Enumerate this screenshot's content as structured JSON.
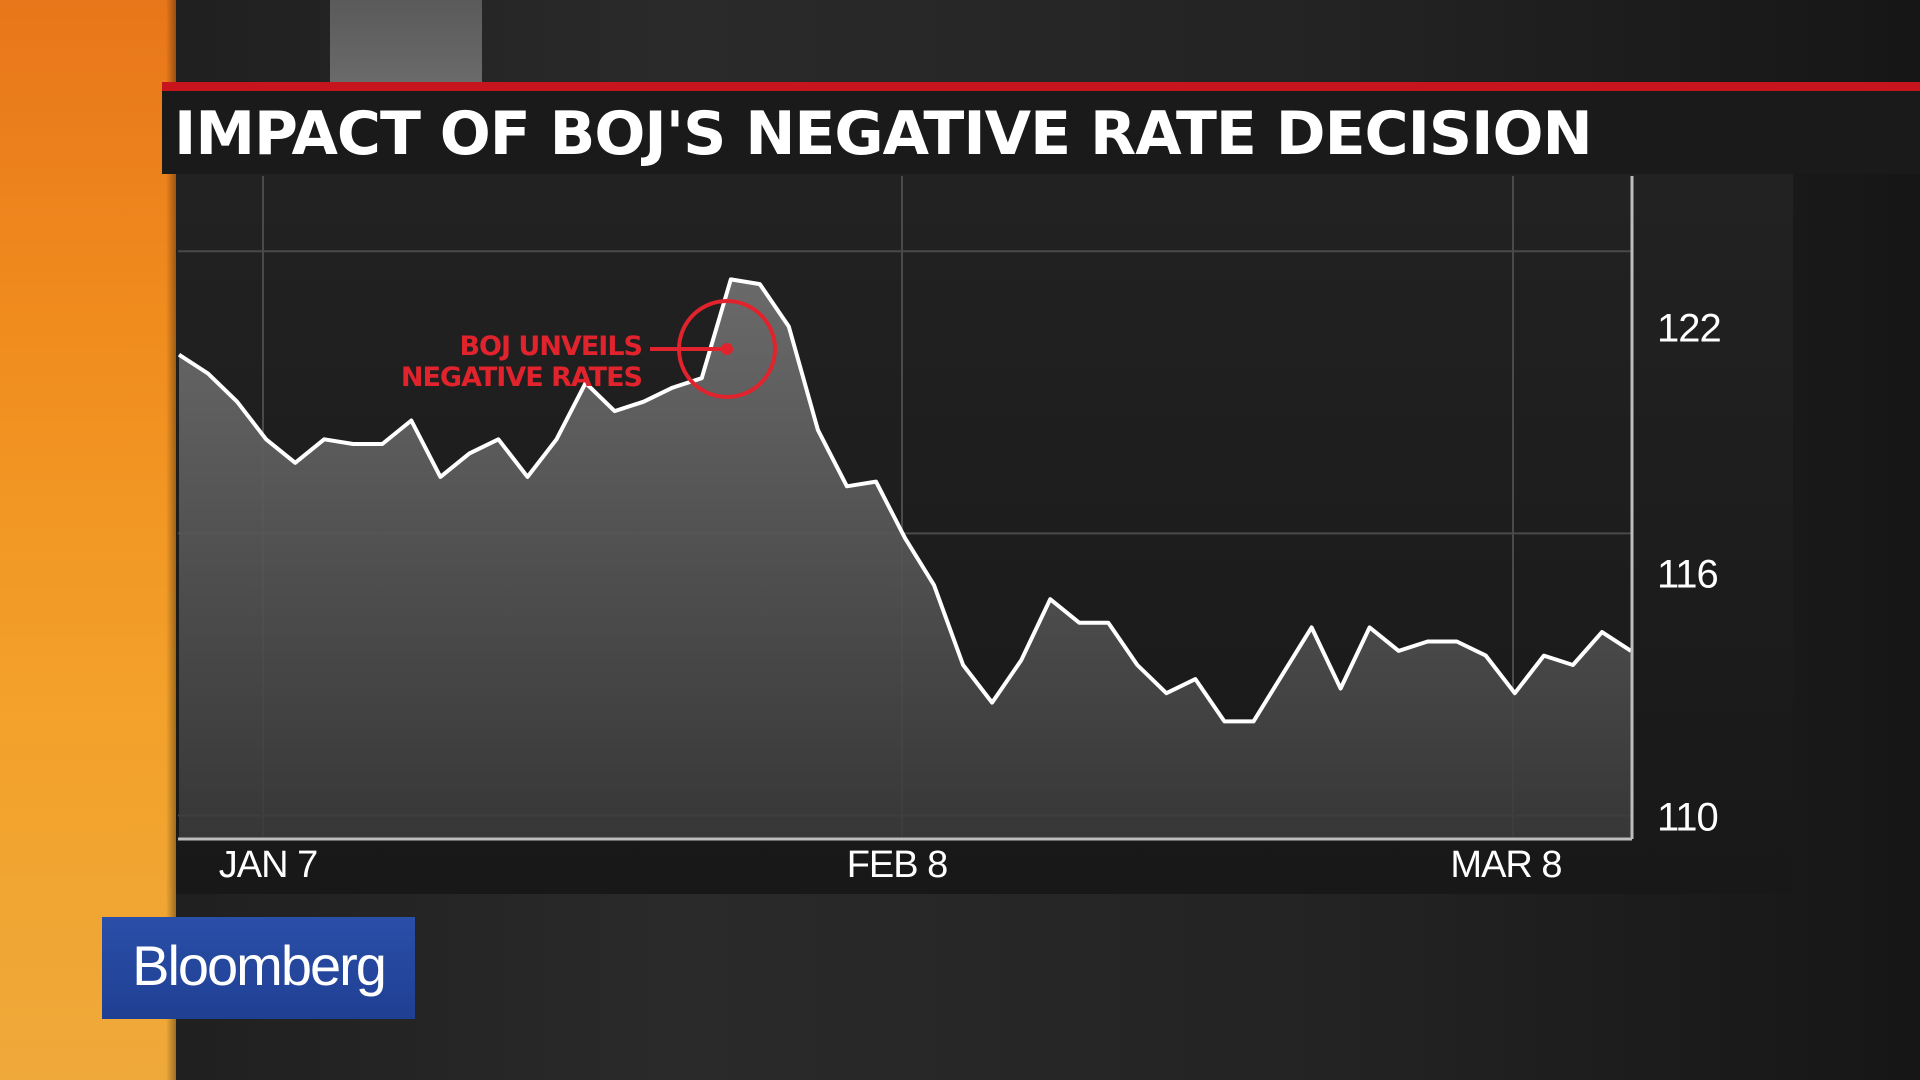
{
  "broadcast": {
    "network_logo": "Bloomberg"
  },
  "colors": {
    "accent_red": "#c8141c",
    "annotation_red": "#e0232d",
    "logo_blue": "#1f3f93",
    "line": "#ffffff"
  },
  "chart_data": {
    "type": "area",
    "title": "IMPACT OF BOJ'S NEGATIVE RATE DECISION",
    "xlabel": "",
    "ylabel": "",
    "ylim": [
      109.5,
      123.6
    ],
    "y_ticks": [
      "122",
      "116",
      "110"
    ],
    "x_ticks": [
      "JAN 7",
      "FEB 8",
      "MAR 8"
    ],
    "grid": true,
    "series": [
      {
        "values": [
          119.8,
          119.4,
          118.8,
          118.0,
          117.5,
          118.0,
          117.9,
          117.9,
          118.4,
          117.2,
          117.7,
          118.0,
          117.2,
          118.0,
          119.2,
          118.6,
          118.8,
          119.1,
          119.3,
          121.4,
          121.3,
          120.4,
          118.2,
          117.0,
          117.1,
          115.9,
          114.9,
          113.2,
          112.4,
          113.3,
          114.6,
          114.1,
          114.1,
          113.2,
          112.6,
          112.9,
          112.0,
          112.0,
          113.0,
          114.0,
          112.7,
          114.0,
          113.5,
          113.7,
          113.7,
          113.4,
          112.6,
          113.4,
          113.2,
          113.9,
          113.5
        ]
      }
    ],
    "annotation": {
      "text_line1": "BOJ UNVEILS",
      "text_line2": "NEGATIVE RATES",
      "point_index": 19
    }
  }
}
